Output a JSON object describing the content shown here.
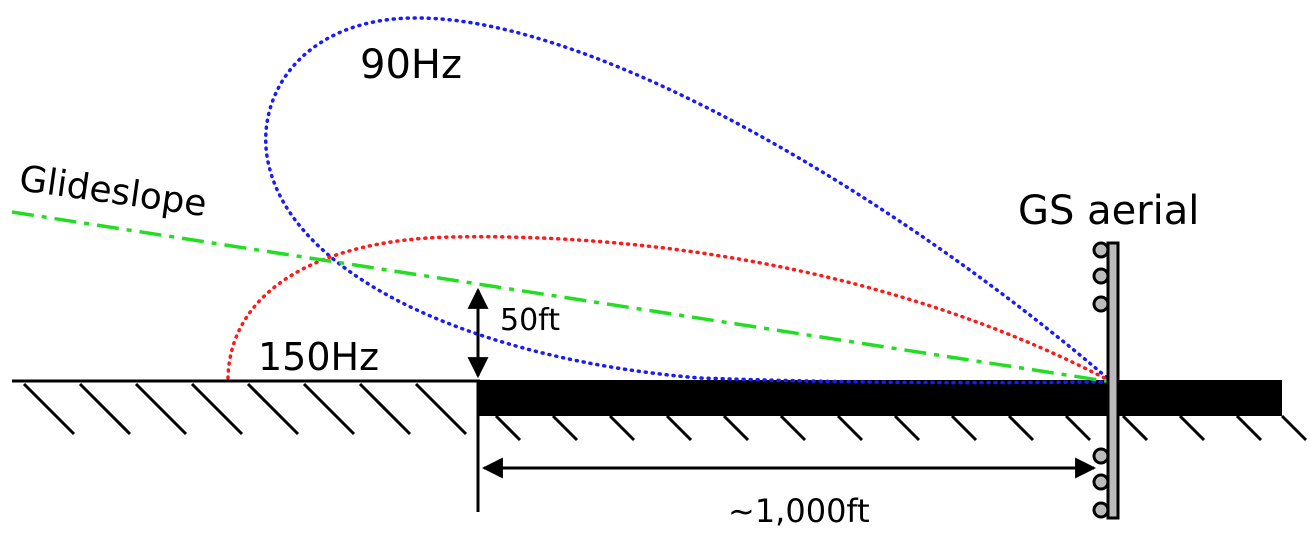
{
  "labels": {
    "lobe_90": "90Hz",
    "lobe_150": "150Hz",
    "glideslope": "Glideslope",
    "aerial": "GS aerial",
    "height": "50ft",
    "distance": "~1,000ft"
  }
}
